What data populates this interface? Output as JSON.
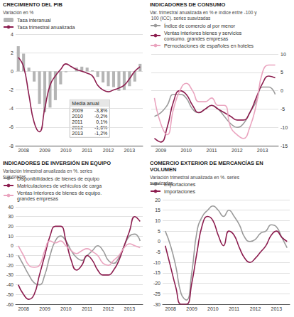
{
  "chart_data": [
    {
      "type": "line",
      "title": "CRECIMIENTO DEL PIB",
      "subtitle": "Variación en %",
      "categories": [
        null,
        "2008",
        null,
        null,
        null,
        "2009",
        null,
        null,
        null,
        "2010",
        null,
        null,
        null,
        "2011",
        null,
        null,
        null,
        "2012",
        null,
        null,
        null,
        "2013",
        null,
        null
      ],
      "series": [
        {
          "name": "Tasa interanual",
          "type": "bar",
          "color": "#b5b5b5",
          "values": [
            2.7,
            1.9,
            0.4,
            -1.1,
            -3.5,
            -4.4,
            -3.9,
            -3.1,
            -1.4,
            -0.1,
            0.0,
            0.4,
            0.5,
            0.4,
            0.1,
            -0.6,
            -1.2,
            -1.6,
            -1.7,
            -2.1,
            -2.0,
            -1.6,
            -1.1,
            0.8
          ]
        },
        {
          "name": "Tasa trimestral anualizada",
          "type": "line",
          "color": "#8c1d4f",
          "values": [
            1.5,
            0.5,
            -2.5,
            -5.5,
            -6.5,
            -4.0,
            -1.5,
            -0.5,
            0.2,
            0.8,
            0.5,
            0.2,
            0.0,
            -0.2,
            -0.5,
            -1.5,
            -2.0,
            -2.2,
            -2.0,
            -1.8,
            -1.5,
            -0.8,
            0.0,
            0.5
          ]
        }
      ],
      "ylim": [
        -8,
        4
      ],
      "yticks": [
        -8,
        -6,
        -4,
        -2,
        0,
        2,
        4
      ],
      "grid": true,
      "legend": "top-left",
      "annotations": {
        "title": "Media anual",
        "rows": [
          [
            "2009",
            "-3,8%"
          ],
          [
            "2010",
            "-0,2%"
          ],
          [
            "2011",
            "0,1%"
          ],
          [
            "2012",
            "-1,6%"
          ],
          [
            "2013",
            "-1,2%"
          ]
        ]
      }
    },
    {
      "type": "line",
      "title": "INDICADORES DE CONSUMO",
      "subtitle": "Var. trimestral anualizada en % e índice entre -100 y 100 (ICC). series suavizadas",
      "categories": [
        null,
        "2009",
        null,
        null,
        null,
        "2010",
        null,
        null,
        null,
        "2011",
        null,
        null,
        null,
        "2012",
        null,
        null,
        null,
        "2013",
        null,
        null
      ],
      "series": [
        {
          "name": "Índice de comercio al por menor",
          "color": "#9b9b9b",
          "values": [
            -7,
            -6,
            -4,
            -1,
            -1,
            -2,
            -5,
            -6,
            -5,
            -4,
            -5,
            -7,
            -9,
            -10,
            -9,
            -6,
            -3,
            1,
            1,
            -1
          ]
        },
        {
          "name": "Ventas interiores bienes y servicios consumo. grandes empresas",
          "color": "#8c1d4f",
          "values": [
            -13,
            -14,
            -10,
            -3,
            0,
            -1,
            -4,
            -6,
            -5,
            -4,
            -5,
            -6,
            -7,
            -8,
            -8,
            -6,
            -2,
            2,
            4,
            3.5
          ]
        },
        {
          "name": "Pernoctaciones de españoles en hoteles",
          "color": "#eaa4bf",
          "values": [
            -2,
            -9,
            -12,
            -5,
            0,
            2,
            0,
            -3,
            -3,
            -2,
            -4,
            -4,
            -10,
            -12,
            -13,
            -10,
            -4,
            5,
            7,
            7
          ]
        }
      ],
      "ylim": [
        -15,
        10
      ],
      "yticks": [
        -15,
        -10,
        -5,
        0,
        5,
        10
      ],
      "grid": true,
      "legend": "top-left"
    },
    {
      "type": "line",
      "title": "INDICADORES DE INVERSIÓN EN EQUIPO",
      "subtitle": "Variación trimestral anualizada en %. series suavizadas",
      "categories": [
        null,
        "2008",
        null,
        null,
        null,
        "2009",
        null,
        null,
        null,
        "2010",
        null,
        null,
        null,
        "2011",
        null,
        null,
        null,
        "2012",
        null,
        null,
        null,
        "2013",
        null,
        null
      ],
      "series": [
        {
          "name": "Disponibilidades de bienes de equipo",
          "color": "#9b9b9b",
          "values": [
            -10,
            -20,
            -30,
            -38,
            -40,
            -30,
            -10,
            5,
            10,
            5,
            -5,
            -12,
            -15,
            -10,
            -5,
            0,
            -5,
            -15,
            -18,
            -12,
            0,
            10,
            12,
            5
          ]
        },
        {
          "name": "Matriculaciones de vehículos de carga",
          "color": "#8c1d4f",
          "values": [
            -40,
            -50,
            -55,
            -50,
            -30,
            -10,
            10,
            20,
            20,
            5,
            -15,
            -25,
            -20,
            -10,
            -15,
            -25,
            -30,
            -30,
            -25,
            -15,
            0,
            15,
            30,
            25
          ]
        },
        {
          "name": "Ventas interiores de bienes de equipo. grandes empresas",
          "color": "#eaa4bf",
          "values": [
            0,
            -10,
            -20,
            -22,
            -20,
            -5,
            5,
            3,
            5,
            0,
            -5,
            -8,
            -5,
            -3,
            -6,
            -10,
            -18,
            -20,
            -15,
            -10,
            -2,
            2,
            0,
            -2
          ]
        }
      ],
      "ylim": [
        -60,
        40
      ],
      "yticks": [
        -60,
        -50,
        -40,
        -30,
        -20,
        -10,
        0,
        10,
        20,
        30,
        40
      ],
      "grid": true,
      "legend": "top-left"
    },
    {
      "type": "line",
      "title": "COMERCIO EXTERIOR DE MERCANCÍAS EN VOLUMEN",
      "subtitle": "Variación trimestral anualizada en %. series suavizadas",
      "categories": [
        null,
        "2008",
        null,
        null,
        null,
        "2009",
        null,
        null,
        null,
        "2010",
        null,
        null,
        null,
        "2011",
        null,
        null,
        null,
        "2012",
        null,
        null,
        null,
        "2013",
        null,
        null
      ],
      "series": [
        {
          "name": "Exportaciones",
          "color": "#9b9b9b",
          "values": [
            5,
            -2,
            -12,
            -25,
            -28,
            -15,
            5,
            12,
            15,
            17,
            15,
            12,
            15,
            12,
            8,
            2,
            0,
            1,
            4,
            5,
            8,
            7,
            2,
            -3
          ]
        },
        {
          "name": "Importaciones",
          "color": "#8c1d4f",
          "values": [
            -2,
            -12,
            -22,
            -30,
            -30,
            -20,
            -5,
            8,
            12,
            10,
            3,
            -2,
            5,
            3,
            -3,
            -8,
            -10,
            -8,
            -5,
            -2,
            3,
            5,
            2,
            0
          ]
        }
      ],
      "ylim": [
        -30,
        20
      ],
      "yticks": [
        -30,
        -25,
        -20,
        -15,
        -10,
        -5,
        0,
        5,
        10,
        15,
        20
      ],
      "grid": true,
      "legend": "top-left"
    }
  ]
}
